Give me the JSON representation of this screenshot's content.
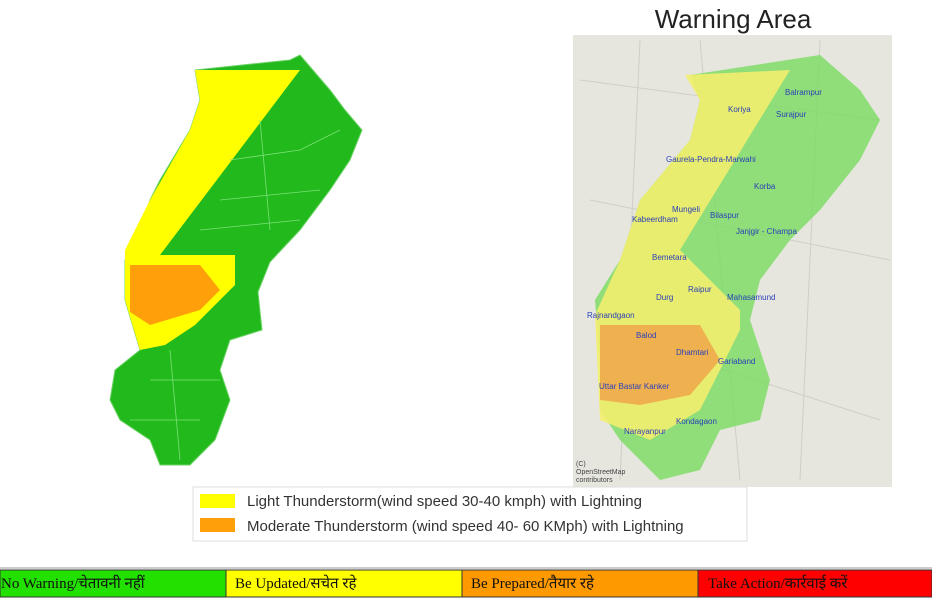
{
  "title": "Warning Area",
  "places": [
    "Balrampur",
    "Koriya",
    "Surajpur",
    "Gaurela-Pendra-Marwahi",
    "Korba",
    "Mungeli",
    "Kabeerdham",
    "Bilaspur",
    "Janjgir - Champa",
    "Bemetara",
    "Raipur",
    "Durg",
    "Mahasamund",
    "Rajnandgaon",
    "Balod",
    "Dhamtari",
    "Gariaband",
    "Uttar Bastar Kanker",
    "Narayanpur",
    "Kondagaon"
  ],
  "attribution": [
    "(C)",
    "OpenStreetMap",
    "contributors"
  ],
  "legend": [
    "Light Thunderstorm(wind speed 30-40 kmph) with Lightning",
    "Moderate Thunderstorm (wind speed 40- 60 KMph) with Lightning"
  ],
  "scale": [
    "No Warning/चेतावनी नहीं",
    "Be Updated/सचेत रहे",
    "Be Prepared/तैयार रहे",
    "Take Action/कार्रवाई करें"
  ]
}
